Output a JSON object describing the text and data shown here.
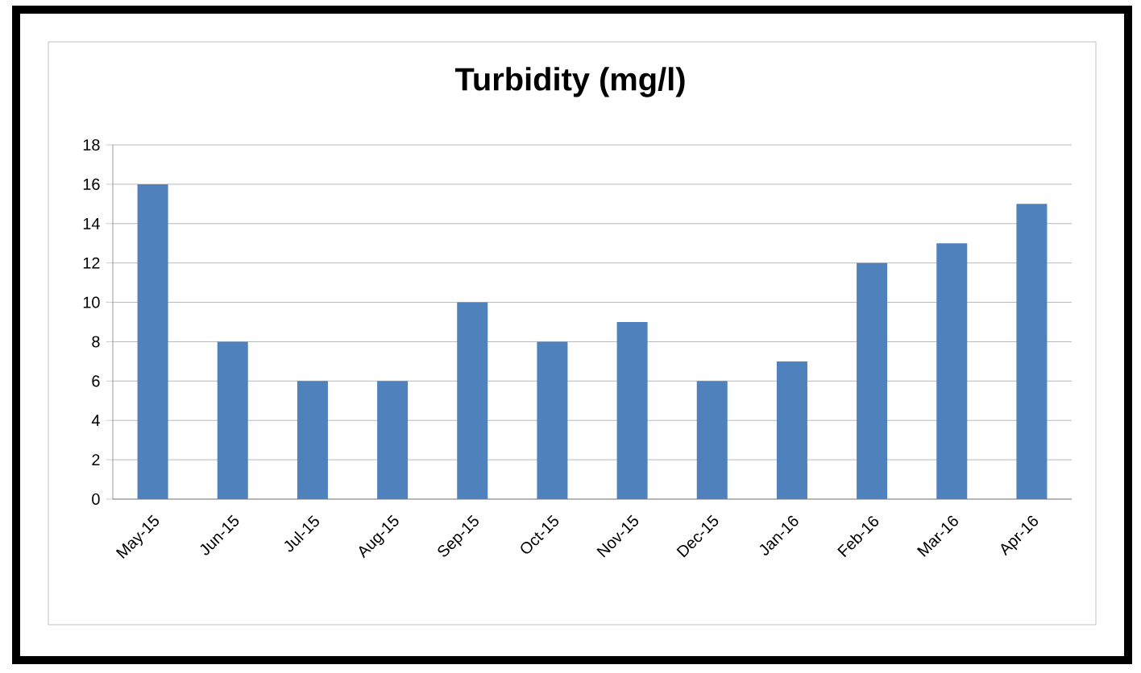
{
  "chart_data": {
    "type": "bar",
    "title": "Turbidity (mg/l)",
    "categories": [
      "May-15",
      "Jun-15",
      "Jul-15",
      "Aug-15",
      "Sep-15",
      "Oct-15",
      "Nov-15",
      "Dec-15",
      "Jan-16",
      "Feb-16",
      "Mar-16",
      "Apr-16"
    ],
    "values": [
      16,
      8,
      6,
      6,
      10,
      8,
      9,
      6,
      7,
      12,
      13,
      15
    ],
    "color": "#4f81bd",
    "ylim": [
      0,
      18
    ],
    "yticks": [
      0,
      2,
      4,
      6,
      8,
      10,
      12,
      14,
      16,
      18
    ],
    "grid": "y"
  }
}
